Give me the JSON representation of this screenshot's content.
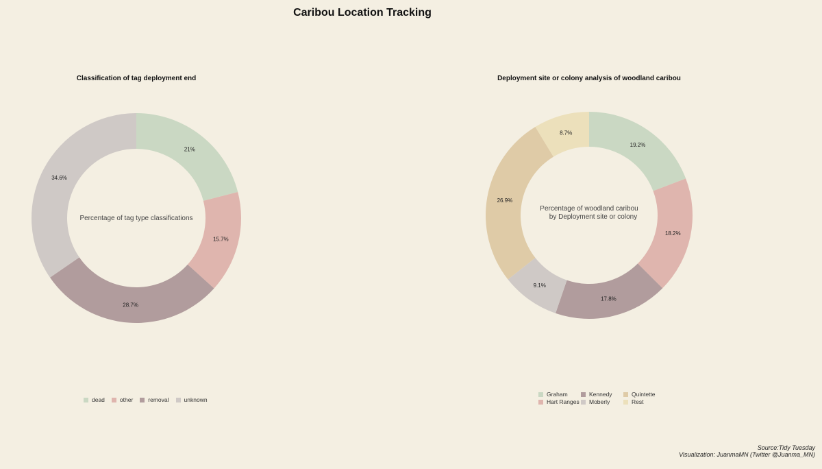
{
  "title": "Caribou Location Tracking",
  "chart_data": [
    {
      "type": "pie",
      "subtype": "donut",
      "title": "Classification of tag deployment end",
      "center_label": [
        "Percentage  of  tag  type  classifications"
      ],
      "categories": [
        "dead",
        "other",
        "removal",
        "unknown"
      ],
      "values": [
        21,
        15.7,
        28.7,
        34.6
      ],
      "labels": [
        "21%",
        "15.7%",
        "28.7%",
        "34.6%"
      ],
      "colors": [
        "#cad8c3",
        "#dfb5ae",
        "#b19c9d",
        "#cfc9c6"
      ],
      "legend_position": "bottom"
    },
    {
      "type": "pie",
      "subtype": "donut",
      "title": "Deployment site or colony analysis of woodland caribou",
      "center_label": [
        "Percentage  of  woodland caribou",
        "by Deployment site   or  colony"
      ],
      "categories": [
        "Graham",
        "Hart Ranges",
        "Kennedy",
        "Moberly",
        "Quintette",
        "Rest"
      ],
      "slice_order": [
        "Graham",
        "Hart Ranges",
        "Kennedy",
        "Moberly",
        "Quintette",
        "Rest"
      ],
      "values": [
        19.2,
        18.2,
        17.8,
        9.1,
        26.9,
        8.7
      ],
      "labels": [
        "19.2%",
        "18.2%",
        "17.8%",
        "9.1%",
        "26.9%",
        "8.7%"
      ],
      "colors": [
        "#cad8c3",
        "#dfb5ae",
        "#b19c9d",
        "#cfc9c6",
        "#dfcba7",
        "#ece0bb"
      ],
      "legend_order": [
        "Graham",
        "Hart Ranges",
        "Kennedy",
        "Moberly",
        "Quintette",
        "Rest"
      ],
      "legend_position": "bottom"
    }
  ],
  "caption": {
    "line1": "Source:Tidy Tuesday",
    "line2": "Visualization: JuanmaMN (Twitter @Juanma_MN)"
  }
}
